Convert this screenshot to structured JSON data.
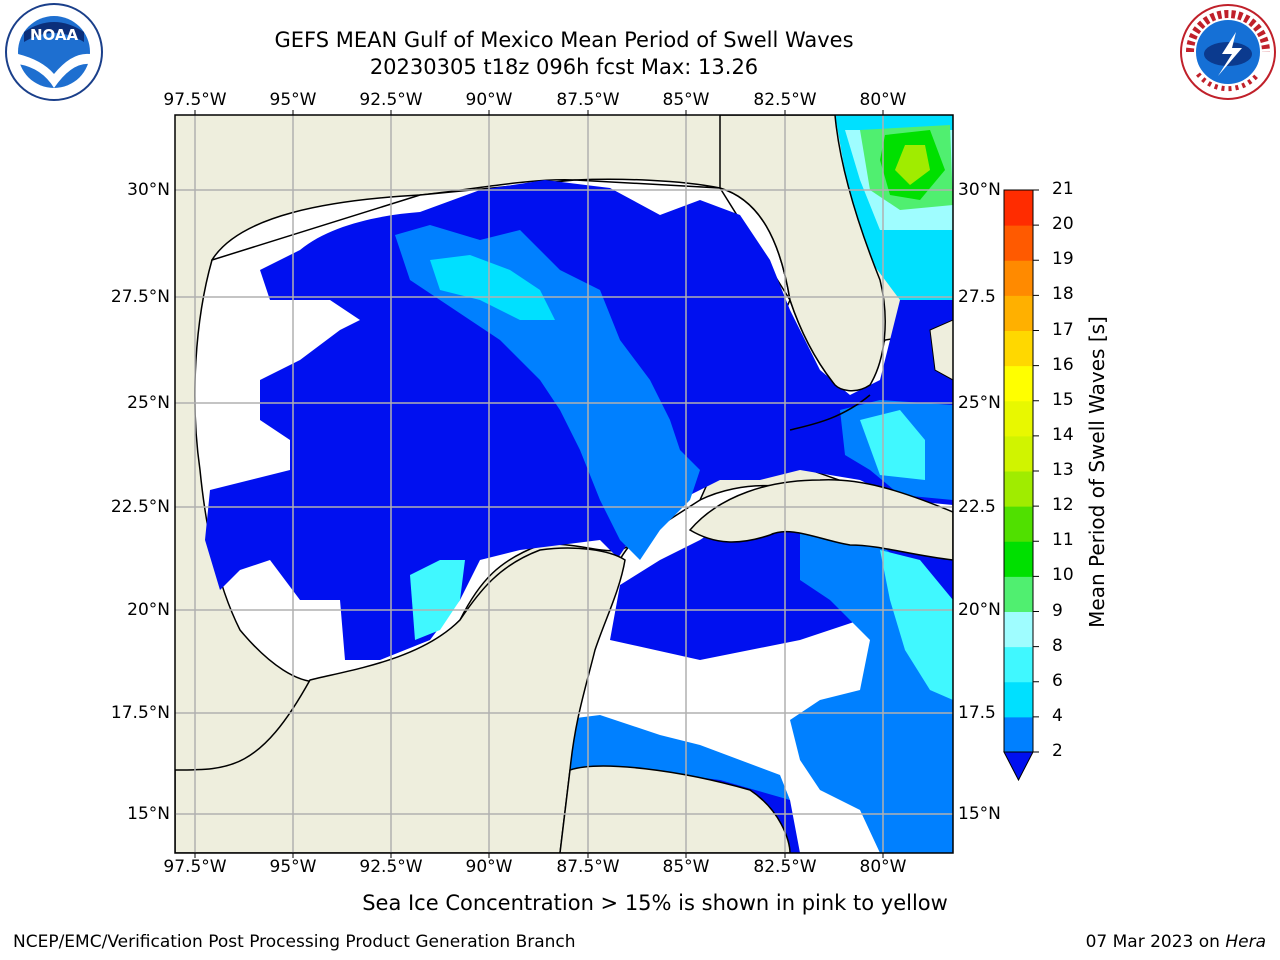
{
  "header": {
    "title_line1": "GEFS MEAN Gulf of Mexico Mean Period of Swell Waves",
    "title_line2": "20230305 t18z 096h fcst   Max: 13.26"
  },
  "logos": {
    "left": "noaa-logo",
    "right": "national-weather-service-logo"
  },
  "map": {
    "lon_labels": [
      "97.5°W",
      "95°W",
      "92.5°W",
      "90°W",
      "87.5°W",
      "85°W",
      "82.5°W",
      "80°W"
    ],
    "lat_labels_left": [
      "30°N",
      "27.5°N",
      "25°N",
      "22.5°N",
      "20°N",
      "17.5°N",
      "15°N"
    ],
    "lat_labels_right": [
      "30°N",
      "27.5",
      "25°N",
      "22.5",
      "20°N",
      "17.5",
      "15°N"
    ],
    "land_color": "#eeeedd",
    "grid_color": "#b0b0b0"
  },
  "colorbar": {
    "title": "Mean Period of Swell Waves [s]",
    "ticks": [
      "2",
      "4",
      "6",
      "8",
      "9",
      "10",
      "11",
      "12",
      "13",
      "14",
      "15",
      "16",
      "17",
      "18",
      "19",
      "20",
      "21"
    ],
    "colors": [
      "#0080ff",
      "#00e0ff",
      "#40f8ff",
      "#9ffdff",
      "#50ef70",
      "#00e000",
      "#50e000",
      "#a0ec00",
      "#d0f400",
      "#e8f800",
      "#ffff00",
      "#ffd800",
      "#ffb000",
      "#ff8a00",
      "#ff5a00",
      "#ff2c00",
      "#ff0000"
    ],
    "extend_color": "#0010f0"
  },
  "subtitle": "Sea Ice Concentration > 15% is shown in pink to yellow",
  "footer": {
    "left": "NCEP/EMC/Verification Post Processing Product Generation Branch",
    "right_prefix": "07 Mar 2023 on ",
    "right_host": "Hera"
  }
}
